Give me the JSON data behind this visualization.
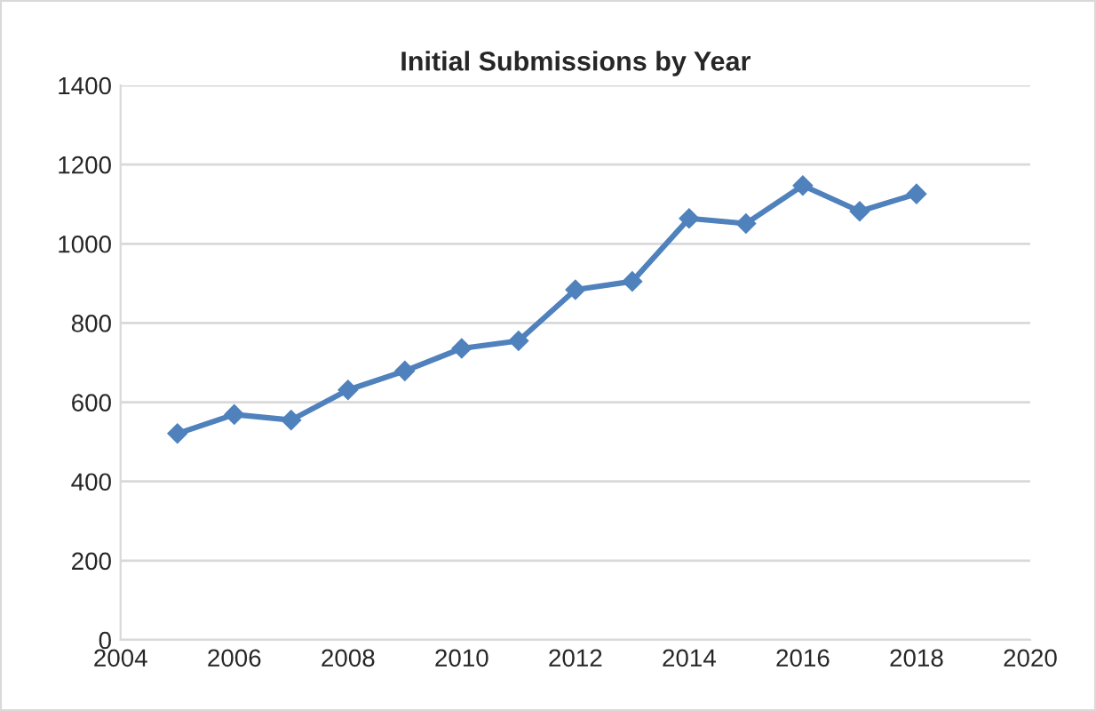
{
  "chart_data": {
    "type": "line",
    "title": "Initial Submissions by Year",
    "x": [
      2005,
      2006,
      2007,
      2008,
      2009,
      2010,
      2011,
      2012,
      2013,
      2014,
      2015,
      2016,
      2017,
      2018
    ],
    "series": [
      {
        "color": "#4f81bd",
        "values": [
          521,
          569,
          555,
          631,
          679,
          736,
          755,
          884,
          905,
          1064,
          1051,
          1147,
          1082,
          1126
        ]
      }
    ],
    "xlim": [
      2004,
      2020
    ],
    "xticks": [
      2004,
      2006,
      2008,
      2010,
      2012,
      2014,
      2016,
      2018,
      2020
    ],
    "ylim": [
      0,
      1400
    ],
    "yticks": [
      0,
      200,
      400,
      600,
      800,
      1000,
      1200,
      1400
    ],
    "grid": "y",
    "marker": "diamond",
    "line_style": "solid",
    "legend": false
  }
}
